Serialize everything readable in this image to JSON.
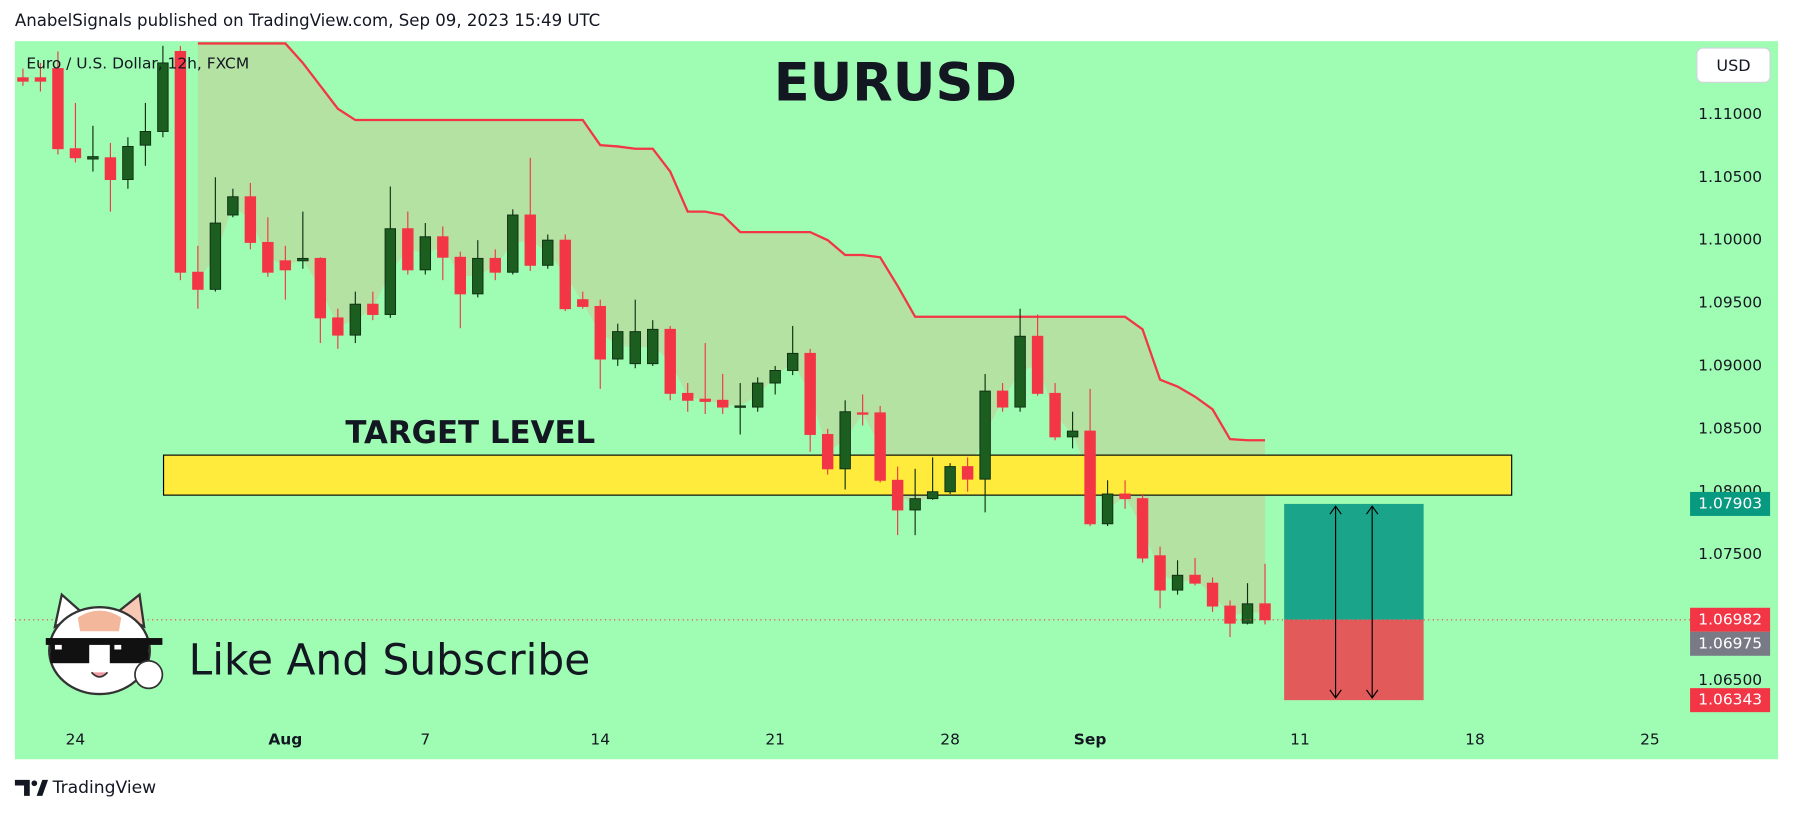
{
  "header": "AnabelSignals published on TradingView.com, Sep 09, 2023 15:49 UTC",
  "footer": "TradingView",
  "chart_data": {
    "type": "candlestick",
    "symbol_label": "Euro / U.S. Dollar, 12h, FXCM",
    "currency": "USD",
    "title": "EURUSD",
    "target_label": "TARGET LEVEL",
    "subscribe_label": "Like And Subscribe",
    "up_color": "#1b5e20",
    "down_color": "#f23645",
    "open": [
      1.11291,
      1.11291,
      1.11364,
      1.10727,
      1.10645,
      1.10655,
      1.10482,
      1.10755,
      1.10864,
      1.115,
      1.09745,
      1.09609,
      1.102,
      1.10345,
      1.09982,
      1.09836,
      1.09836,
      1.09855,
      1.09382,
      1.09245,
      1.09491,
      1.09409,
      1.10091,
      1.09764,
      1.10027,
      1.09864,
      1.09573,
      1.09855,
      1.09745,
      1.102,
      1.098,
      1.1,
      1.09527,
      1.09473,
      1.09055,
      1.09018,
      1.09018,
      1.09291,
      1.08782,
      1.08736,
      1.08727,
      1.08673,
      1.08673,
      1.08864,
      1.08964,
      1.091,
      1.08455,
      1.08182,
      1.08627,
      1.08627,
      1.08091,
      1.07855,
      1.07945,
      1.08,
      1.082,
      1.081,
      1.088,
      1.08673,
      1.09236,
      1.08782,
      1.08436,
      1.08482,
      1.07745,
      1.07982,
      1.07945,
      1.07491,
      1.07218,
      1.07336,
      1.07273,
      1.07091,
      1.06955,
      1.07109
    ],
    "high": [
      1.11364,
      1.11409,
      1.115,
      1.11091,
      1.10909,
      1.10773,
      1.10818,
      1.11091,
      1.11545,
      1.11545,
      1.09955,
      1.105,
      1.10409,
      1.10455,
      1.10182,
      1.09955,
      1.10227,
      1.09864,
      1.09455,
      1.09591,
      1.09591,
      1.10427,
      1.10227,
      1.10136,
      1.10109,
      1.09909,
      1.1,
      1.09927,
      1.10245,
      1.10655,
      1.10045,
      1.10045,
      1.09591,
      1.09527,
      1.09336,
      1.09527,
      1.09364,
      1.09318,
      1.08864,
      1.09182,
      1.08936,
      1.08864,
      1.08909,
      1.09,
      1.09318,
      1.09136,
      1.085,
      1.08727,
      1.08773,
      1.08682,
      1.082,
      1.08182,
      1.08273,
      1.08227,
      1.08273,
      1.08936,
      1.08864,
      1.09455,
      1.09409,
      1.08864,
      1.08636,
      1.08818,
      1.08091,
      1.08091,
      1.07982,
      1.07564,
      1.07455,
      1.07473,
      1.07318,
      1.07136,
      1.07273,
      1.07427
    ],
    "low": [
      1.11227,
      1.11182,
      1.10682,
      1.10618,
      1.10545,
      1.10227,
      1.10409,
      1.10591,
      1.10818,
      1.09682,
      1.09455,
      1.09591,
      1.10182,
      1.09927,
      1.09709,
      1.09527,
      1.09773,
      1.09182,
      1.09136,
      1.09182,
      1.09364,
      1.09382,
      1.09727,
      1.09727,
      1.09682,
      1.093,
      1.09545,
      1.09682,
      1.09727,
      1.09755,
      1.09773,
      1.09436,
      1.09455,
      1.08818,
      1.09,
      1.08982,
      1.09,
      1.08727,
      1.08636,
      1.08618,
      1.08618,
      1.08455,
      1.08636,
      1.08773,
      1.08927,
      1.08318,
      1.08136,
      1.08018,
      1.08527,
      1.08073,
      1.07655,
      1.07655,
      1.07936,
      1.07982,
      1.08,
      1.07836,
      1.08636,
      1.08636,
      1.08764,
      1.08409,
      1.08345,
      1.07727,
      1.07727,
      1.07864,
      1.07436,
      1.07073,
      1.07182,
      1.07255,
      1.07045,
      1.06845,
      1.06945,
      1.06945
    ],
    "close": [
      1.11264,
      1.11264,
      1.10727,
      1.10655,
      1.10664,
      1.10482,
      1.10745,
      1.10864,
      1.11409,
      1.09745,
      1.09609,
      1.10136,
      1.10345,
      1.09982,
      1.09745,
      1.09764,
      1.09855,
      1.09382,
      1.09245,
      1.09491,
      1.09409,
      1.10091,
      1.09764,
      1.10027,
      1.09864,
      1.09573,
      1.09855,
      1.09745,
      1.102,
      1.098,
      1.1,
      1.09455,
      1.09473,
      1.09055,
      1.09273,
      1.09273,
      1.09291,
      1.08782,
      1.08727,
      1.08718,
      1.08673,
      1.08682,
      1.08864,
      1.08964,
      1.091,
      1.08455,
      1.08182,
      1.08636,
      1.08618,
      1.08091,
      1.07855,
      1.07945,
      1.08,
      1.082,
      1.081,
      1.088,
      1.08673,
      1.09236,
      1.08782,
      1.08436,
      1.08482,
      1.07745,
      1.07982,
      1.07945,
      1.07473,
      1.07218,
      1.07336,
      1.07273,
      1.07091,
      1.06955,
      1.07109,
      1.06982
    ],
    "trend_line": {
      "color": "#f23645",
      "values": [
        null,
        null,
        null,
        null,
        null,
        null,
        null,
        null,
        null,
        null,
        1.11564,
        1.11564,
        1.11564,
        1.11564,
        1.11564,
        1.11564,
        1.11409,
        1.11227,
        1.11045,
        1.10955,
        1.10955,
        1.10955,
        1.10955,
        1.10955,
        1.10955,
        1.10955,
        1.10955,
        1.10955,
        1.10955,
        1.10955,
        1.10955,
        1.10955,
        1.10955,
        1.10755,
        1.10745,
        1.10727,
        1.10727,
        1.10545,
        1.10227,
        1.10227,
        1.102,
        1.10064,
        1.10064,
        1.10064,
        1.10064,
        1.10064,
        1.1,
        1.09882,
        1.09882,
        1.09864,
        1.09636,
        1.09391,
        1.09391,
        1.09391,
        1.09391,
        1.09391,
        1.09391,
        1.09391,
        1.09391,
        1.09391,
        1.09391,
        1.09391,
        1.09391,
        1.09391,
        1.09291,
        1.08891,
        1.08836,
        1.08755,
        1.08655,
        1.08418,
        1.08409,
        1.08409
      ]
    },
    "target_zone": {
      "top": 1.08291,
      "bottom": 1.07973,
      "color": "#ffeb3b"
    },
    "position": {
      "target": 1.07903,
      "entry": 1.06982,
      "stop": 1.06343,
      "profit_color": "#1aa58a",
      "loss_color": "#e35a5a"
    },
    "price_labels": [
      {
        "value": 1.07903,
        "color": "#089981"
      },
      {
        "value": 1.06982,
        "color": "#f23645"
      },
      {
        "value": 1.06975,
        "color": "#787b86"
      },
      {
        "value": 1.06343,
        "color": "#f23645"
      }
    ],
    "ylim": [
      1.06164,
      1.11582
    ],
    "yticks": [
      {
        "value": 1.11,
        "label": "1.11000"
      },
      {
        "value": 1.105,
        "label": "1.10500"
      },
      {
        "value": 1.1,
        "label": "1.10000"
      },
      {
        "value": 1.095,
        "label": "1.09500"
      },
      {
        "value": 1.09,
        "label": "1.09000"
      },
      {
        "value": 1.085,
        "label": "1.08500"
      },
      {
        "value": 1.08,
        "label": "1.08000"
      },
      {
        "value": 1.075,
        "label": "1.07500"
      },
      {
        "value": 1.07,
        "label": "1.07000"
      },
      {
        "value": 1.065,
        "label": "1.06500"
      }
    ],
    "xlim": [
      -0.46,
      95.1
    ],
    "xticks": [
      {
        "value": 3,
        "label": "24"
      },
      {
        "value": 15,
        "label": "Aug"
      },
      {
        "value": 23,
        "label": "7"
      },
      {
        "value": 33,
        "label": "14"
      },
      {
        "value": 43,
        "label": "21"
      },
      {
        "value": 53,
        "label": "28"
      },
      {
        "value": 61,
        "label": "Sep"
      },
      {
        "value": 73,
        "label": "11"
      },
      {
        "value": 83,
        "label": "18"
      },
      {
        "value": 93,
        "label": "25"
      }
    ],
    "grid": false
  }
}
